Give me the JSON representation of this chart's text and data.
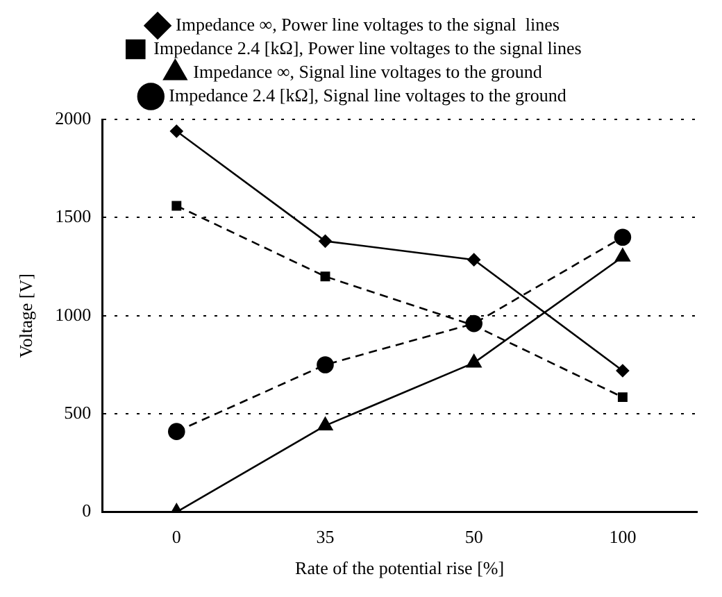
{
  "chart_data": {
    "type": "line",
    "xlabel": "Rate of the potential rise [%]",
    "ylabel": "Voltage [V]",
    "categories": [
      "0",
      "35",
      "50",
      "100"
    ],
    "ylim": [
      0,
      2000
    ],
    "yticks": [
      0,
      500,
      1000,
      1500,
      2000
    ],
    "grid": "y",
    "legend": "top",
    "series": [
      {
        "name": "Impedance ∞, Power line voltages to the signal  lines",
        "color": "#000000",
        "marker": "diamond",
        "line_style": "solid",
        "values": [
          1940,
          1380,
          1285,
          720
        ]
      },
      {
        "name": "Impedance 2.4 [kΩ], Power line voltages to the signal lines",
        "color": "#000000",
        "marker": "square",
        "line_style": "dashed",
        "values": [
          1560,
          1200,
          950,
          585
        ]
      },
      {
        "name": "Impedance ∞, Signal line voltages to the ground",
        "color": "#000000",
        "marker": "triangle",
        "line_style": "solid",
        "values": [
          0,
          440,
          760,
          1300
        ]
      },
      {
        "name": "Impedance 2.4 [kΩ], Signal line voltages to the ground",
        "color": "#000000",
        "marker": "circle",
        "line_style": "dashed",
        "values": [
          410,
          750,
          960,
          1400
        ]
      }
    ]
  }
}
